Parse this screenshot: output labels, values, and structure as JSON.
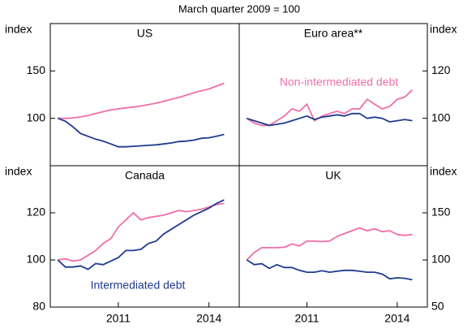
{
  "subtitle": "March quarter 2009 = 100",
  "chart_data": [
    {
      "type": "line",
      "title": "US",
      "ylabel": "index",
      "x": [
        2009,
        2009.25,
        2009.5,
        2009.75,
        2010,
        2010.25,
        2010.5,
        2010.75,
        2011,
        2011.25,
        2011.5,
        2011.75,
        2012,
        2012.25,
        2012.5,
        2012.75,
        2013,
        2013.25,
        2013.5,
        2013.75,
        2014,
        2014.25,
        2014.5
      ],
      "xlim": [
        2008.75,
        2015
      ],
      "ylim": [
        50,
        200
      ],
      "yticks": [
        100,
        150
      ],
      "series": [
        {
          "color": "#f06eaa",
          "values": [
            100,
            100,
            100.5,
            101.5,
            103,
            105,
            107,
            109,
            110,
            111,
            112,
            113,
            114.5,
            116,
            118,
            120,
            122,
            124.5,
            127,
            129,
            131,
            134,
            137
          ]
        },
        {
          "color": "#1f3b8f",
          "values": [
            100,
            97,
            91,
            84,
            81,
            78,
            76,
            73,
            70,
            70,
            70.5,
            71,
            71.5,
            72,
            73,
            74,
            75.5,
            76,
            77,
            79,
            79.5,
            81,
            83
          ]
        }
      ]
    },
    {
      "type": "line",
      "title": "Euro area**",
      "ylabel": "index",
      "x": [
        2009,
        2009.25,
        2009.5,
        2009.75,
        2010,
        2010.25,
        2010.5,
        2010.75,
        2011,
        2011.25,
        2011.5,
        2011.75,
        2012,
        2012.25,
        2012.5,
        2012.75,
        2013,
        2013.25,
        2013.5,
        2013.75,
        2014,
        2014.25,
        2014.5
      ],
      "xlim": [
        2008.75,
        2015
      ],
      "ylim": [
        80,
        140
      ],
      "yticks": [
        100,
        120
      ],
      "annotations": [
        {
          "text": "Non-intermediated debt",
          "color": "#f06eaa"
        }
      ],
      "series": [
        {
          "color": "#f06eaa",
          "values": [
            100,
            98,
            97,
            97,
            99,
            101,
            104,
            103,
            106,
            99,
            101,
            102,
            103,
            102,
            104,
            104,
            108,
            106,
            104,
            105,
            108,
            109,
            112
          ]
        },
        {
          "color": "#1f3b8f",
          "values": [
            100,
            99,
            98,
            97,
            97.5,
            98,
            99,
            100,
            101,
            99.5,
            100.5,
            101,
            101.5,
            101,
            102,
            102,
            100,
            100.5,
            100,
            98.5,
            99,
            99.5,
            99
          ]
        }
      ]
    },
    {
      "type": "line",
      "title": "Canada",
      "ylabel": "index",
      "x": [
        2009,
        2009.25,
        2009.5,
        2009.75,
        2010,
        2010.25,
        2010.5,
        2010.75,
        2011,
        2011.25,
        2011.5,
        2011.75,
        2012,
        2012.25,
        2012.5,
        2012.75,
        2013,
        2013.25,
        2013.5,
        2013.75,
        2014,
        2014.25,
        2014.5
      ],
      "xlim": [
        2008.75,
        2015
      ],
      "xticks": [
        2011,
        2014
      ],
      "ylim": [
        80,
        140
      ],
      "yticks": [
        80,
        100,
        120
      ],
      "annotations": [
        {
          "text": "Intermediated debt",
          "color": "#1f3b8f"
        }
      ],
      "series": [
        {
          "color": "#f06eaa",
          "values": [
            100,
            100.5,
            99.5,
            100,
            102,
            104,
            107,
            109,
            114,
            117,
            120,
            117,
            118,
            118.5,
            119,
            120,
            121,
            120.5,
            121,
            121.5,
            122.5,
            123.5,
            124
          ]
        },
        {
          "color": "#1f3b8f",
          "values": [
            100,
            97,
            97,
            97.5,
            96,
            98.5,
            98,
            99.5,
            101,
            104,
            104,
            104.5,
            107,
            108,
            111,
            113,
            115,
            117,
            119,
            120.5,
            122,
            124,
            125.5
          ]
        }
      ]
    },
    {
      "type": "line",
      "title": "UK",
      "ylabel": "index",
      "x": [
        2009,
        2009.25,
        2009.5,
        2009.75,
        2010,
        2010.25,
        2010.5,
        2010.75,
        2011,
        2011.25,
        2011.5,
        2011.75,
        2012,
        2012.25,
        2012.5,
        2012.75,
        2013,
        2013.25,
        2013.5,
        2013.75,
        2014,
        2014.25,
        2014.5
      ],
      "xlim": [
        2008.75,
        2015
      ],
      "xticks": [
        2011,
        2014
      ],
      "ylim": [
        50,
        200
      ],
      "yticks": [
        50,
        100,
        150
      ],
      "series": [
        {
          "color": "#f06eaa",
          "values": [
            100,
            108,
            113,
            113,
            113,
            113.5,
            117,
            115,
            120,
            120,
            119.5,
            120,
            125,
            128,
            131,
            134,
            131,
            133,
            130,
            131,
            127,
            126,
            127
          ]
        },
        {
          "color": "#1f3b8f",
          "values": [
            100,
            95,
            96,
            91,
            95,
            92,
            92,
            89,
            87,
            87,
            88.5,
            87,
            88,
            89,
            89,
            88,
            87,
            87,
            85,
            80,
            81,
            80.5,
            79
          ]
        }
      ]
    }
  ]
}
